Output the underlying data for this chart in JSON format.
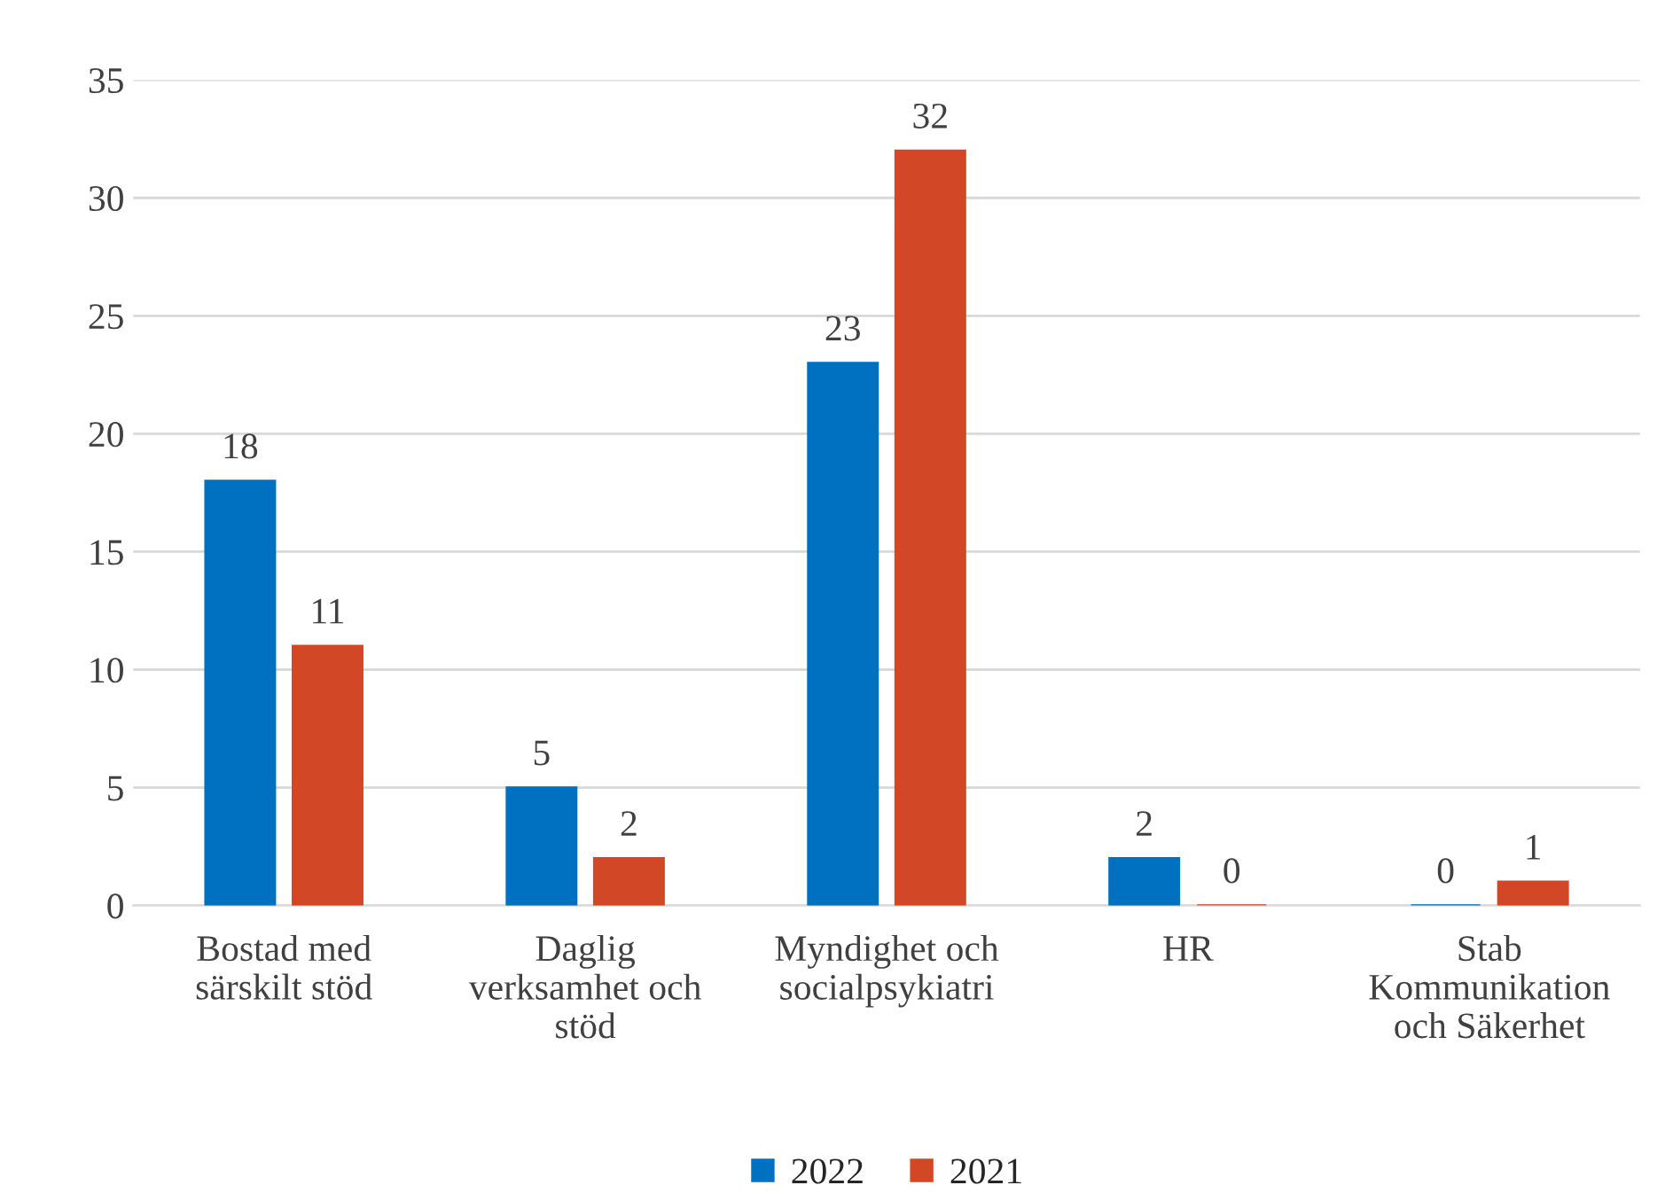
{
  "chart_data": {
    "type": "bar",
    "categories": [
      "Bostad med\nsärskilt stöd",
      "Daglig\nverksamhet och\nstöd",
      "Myndighet och\nsocialpsykiatri",
      "HR",
      "Stab\nKommunikation\noch Säkerhet"
    ],
    "series": [
      {
        "name": "2022",
        "color": "#0070c0",
        "values": [
          18,
          5,
          23,
          2,
          0
        ]
      },
      {
        "name": "2021",
        "color": "#d24726",
        "values": [
          11,
          2,
          32,
          0,
          1
        ]
      }
    ],
    "ylim": [
      0,
      35
    ],
    "yticks": [
      0,
      5,
      10,
      15,
      20,
      25,
      30,
      35
    ],
    "grid": "y",
    "legend": "bottom",
    "data_labels": true
  }
}
